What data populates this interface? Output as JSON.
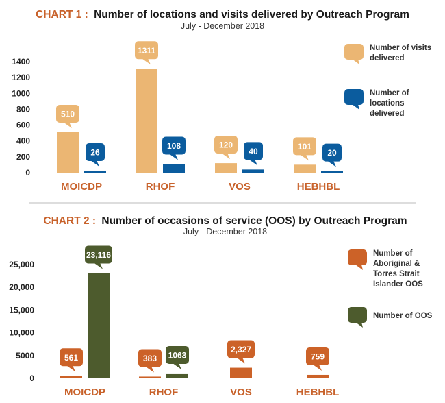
{
  "colors": {
    "title_prefix": "#c8622b",
    "title_text": "#1a1a1a",
    "category": "#c8622b",
    "visits": "#ebb673",
    "locations": "#0b5c9e",
    "aboriginal": "#cc6228",
    "oos": "#4d5b2d",
    "divider": "#bbbbbb"
  },
  "chart_data": [
    {
      "type": "bar",
      "title_prefix": "CHART 1 :",
      "title": "Number of locations and visits delivered by Outreach Program",
      "subtitle": "July - December 2018",
      "categories": [
        "MOICDP",
        "RHOF",
        "VOS",
        "HEBHBL"
      ],
      "series": [
        {
          "name": "Number of visits delivered",
          "values": [
            510,
            1311,
            120,
            101
          ],
          "labels": [
            "510",
            "1311",
            "120",
            "101"
          ],
          "legend_lines": [
            "Number of visits",
            "delivered"
          ],
          "color_key": "visits"
        },
        {
          "name": "Number of locations delivered",
          "values": [
            26,
            108,
            40,
            20
          ],
          "labels": [
            "26",
            "108",
            "40",
            "20"
          ],
          "legend_lines": [
            "Number of",
            "locations",
            "delivered"
          ],
          "color_key": "locations"
        }
      ],
      "yticks": [
        0,
        200,
        400,
        600,
        800,
        1000,
        1200,
        1400
      ],
      "ytick_labels": [
        "0",
        "200",
        "400",
        "600",
        "800",
        "1000",
        "1200",
        "1400"
      ],
      "ylim": [
        0,
        1400
      ],
      "grid": false,
      "legend": "right"
    },
    {
      "type": "bar",
      "title_prefix": "CHART 2 :",
      "title": "Number of occasions of service (OOS) by Outreach Program",
      "subtitle": "July - December 2018",
      "categories": [
        "MOICDP",
        "RHOF",
        "VOS",
        "HEBHBL"
      ],
      "series": [
        {
          "name": "Number of Aboriginal & Torres Strait Islander OOS",
          "values": [
            561,
            383,
            2327,
            759
          ],
          "labels": [
            "561",
            "383",
            "2,327",
            "759"
          ],
          "legend_lines": [
            "Number of",
            "Aboriginal &",
            "Torres Strait",
            "Islander OOS"
          ],
          "color_key": "aboriginal"
        },
        {
          "name": "Number of OOS",
          "values": [
            23116,
            1063,
            null,
            null
          ],
          "labels": [
            "23,116",
            "1063",
            "",
            ""
          ],
          "legend_lines": [
            "Number of OOS"
          ],
          "color_key": "oos"
        }
      ],
      "yticks": [
        0,
        5000,
        10000,
        15000,
        20000,
        25000
      ],
      "ytick_labels": [
        "0",
        "5000",
        "10,000",
        "15,000",
        "20,000",
        "25,000"
      ],
      "ylim": [
        0,
        25000
      ],
      "grid": false,
      "legend": "right"
    }
  ]
}
